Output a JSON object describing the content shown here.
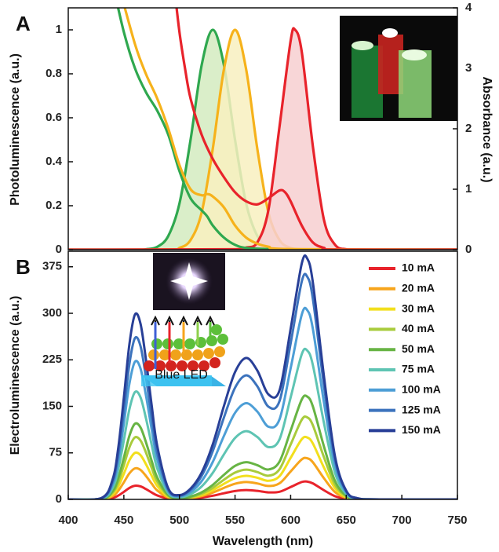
{
  "chart_data": [
    {
      "type": "line",
      "panel_label": "A",
      "ylabel": "Photoluminescence (a.u.)",
      "y2label": "Absorbance (a.u.)",
      "xlim": [
        400,
        750
      ],
      "ylim": [
        0,
        1.1
      ],
      "yticks": [
        0,
        0.2,
        0.4,
        0.6,
        0.8,
        1
      ],
      "y2lim": [
        0,
        4
      ],
      "y2ticks": [
        0,
        1,
        2,
        3,
        4
      ],
      "series": [
        {
          "color": "#2fa84f",
          "fill_color": "#d3ebbf",
          "x": [
            400,
            460,
            470,
            480,
            490,
            500,
            510,
            520,
            530,
            540,
            550,
            560,
            570,
            580,
            590,
            600,
            750
          ],
          "values": [
            0,
            0,
            0.002,
            0.013,
            0.063,
            0.21,
            0.5,
            0.84,
            1,
            0.84,
            0.5,
            0.21,
            0.063,
            0.013,
            0.002,
            0,
            0
          ]
        },
        {
          "color": "#f6b21b",
          "fill_color": "#f8f0bf",
          "x": [
            400,
            490,
            500,
            510,
            520,
            530,
            540,
            550,
            560,
            570,
            580,
            590,
            600,
            610,
            620,
            750
          ],
          "values": [
            0,
            0.001,
            0.008,
            0.044,
            0.17,
            0.46,
            0.82,
            1,
            0.82,
            0.46,
            0.17,
            0.044,
            0.008,
            0.001,
            0,
            0
          ]
        },
        {
          "color": "#e8232b",
          "fill_color": "#f7cfd0",
          "x": [
            400,
            550,
            560,
            570,
            580,
            590,
            600,
            604,
            610,
            620,
            630,
            640,
            650,
            660,
            750
          ],
          "values": [
            0,
            0.002,
            0.01,
            0.033,
            0.18,
            0.56,
            0.95,
            1,
            0.9,
            0.47,
            0.135,
            0.022,
            0.002,
            0,
            0
          ]
        },
        {
          "color": "#2fa84f",
          "axis": "y2",
          "x": [
            440,
            450,
            460,
            470,
            480,
            490,
            500,
            510,
            520,
            525,
            530,
            540,
            550,
            560,
            580,
            600,
            750
          ],
          "values": [
            4.4,
            3.6,
            3.0,
            2.6,
            2.3,
            1.9,
            1.3,
            0.85,
            0.65,
            0.55,
            0.4,
            0.2,
            0.08,
            0.03,
            0.01,
            0,
            0
          ]
        },
        {
          "color": "#f6b21b",
          "axis": "y2",
          "x": [
            445,
            460,
            470,
            480,
            490,
            500,
            510,
            520,
            525,
            530,
            540,
            550,
            560,
            570,
            580,
            600,
            750
          ],
          "values": [
            4.4,
            3.4,
            2.9,
            2.5,
            2.0,
            1.4,
            1.0,
            0.9,
            0.92,
            0.88,
            0.7,
            0.4,
            0.2,
            0.1,
            0.05,
            0.01,
            0
          ]
        },
        {
          "color": "#e8232b",
          "axis": "y2",
          "x": [
            495,
            500,
            505,
            510,
            520,
            530,
            540,
            550,
            560,
            570,
            580,
            590,
            595,
            600,
            610,
            620,
            630,
            640,
            750
          ],
          "values": [
            4.4,
            3.6,
            3.0,
            2.5,
            1.9,
            1.5,
            1.2,
            0.95,
            0.8,
            0.75,
            0.85,
            0.98,
            0.95,
            0.8,
            0.4,
            0.12,
            0.03,
            0,
            0
          ]
        }
      ]
    },
    {
      "type": "line",
      "panel_label": "B",
      "ylabel": "Electroluminescence (a.u.)",
      "xlabel": "Wavelength (nm)",
      "inset_label": "Blue LED",
      "legend": "upper right",
      "xlim": [
        400,
        750
      ],
      "xticks": [
        400,
        450,
        500,
        550,
        600,
        650,
        700,
        750
      ],
      "ylim": [
        0,
        400
      ],
      "yticks": [
        0,
        75,
        150,
        225,
        300,
        375
      ],
      "x": [
        400,
        430,
        440,
        445,
        450,
        455,
        460,
        465,
        470,
        475,
        480,
        490,
        500,
        510,
        520,
        530,
        540,
        550,
        560,
        570,
        580,
        590,
        600,
        610,
        615,
        620,
        630,
        640,
        650,
        660,
        680,
        750
      ],
      "series": [
        {
          "name": "10 mA",
          "color": "#e8232b",
          "values": [
            0,
            0.2,
            2.4,
            6.2,
            12.1,
            18.5,
            22,
            20.9,
            16.5,
            11.2,
            6.4,
            1.3,
            0.5,
            1.1,
            2.9,
            5.9,
            9.9,
            13.5,
            15,
            13.7,
            11.3,
            12.3,
            19.9,
            28.0,
            28.7,
            25.8,
            14.7,
            5.1,
            1.0,
            0.1,
            0,
            0
          ]
        },
        {
          "name": "20 mA",
          "color": "#f7a51c",
          "values": [
            0,
            0.4,
            5.5,
            14,
            27.5,
            42,
            50,
            47.5,
            37.5,
            25.5,
            14.5,
            2.9,
            0.9,
            2.1,
            5.3,
            10.9,
            18.5,
            25.2,
            28,
            25.7,
            21.7,
            25.9,
            45,
            64.5,
            66.2,
            59.8,
            34,
            11.7,
            2.4,
            0.3,
            0,
            0
          ]
        },
        {
          "name": "30 mA",
          "color": "#f2df1d",
          "values": [
            0,
            0.6,
            8.3,
            21,
            41.3,
            63,
            75,
            71.3,
            56.3,
            38.3,
            21.8,
            4.3,
            1.3,
            2.9,
            7.2,
            14.8,
            25.1,
            34.2,
            38,
            34.9,
            30,
            37.4,
            67,
            97,
            99.7,
            90.1,
            51.2,
            17.7,
            3.6,
            0.5,
            0,
            0
          ]
        },
        {
          "name": "40 mA",
          "color": "#a8cb3c",
          "values": [
            0,
            0.8,
            11,
            28,
            55,
            84,
            100,
            95,
            75,
            51,
            29,
            5.7,
            1.7,
            3.6,
            9.1,
            18.7,
            31.7,
            43.2,
            48,
            44.1,
            38.2,
            48.6,
            88.4,
            128.4,
            132.1,
            119.5,
            67.9,
            23.4,
            4.8,
            0.7,
            0,
            0
          ]
        },
        {
          "name": "50 mA",
          "color": "#67b444",
          "values": [
            0,
            1,
            13.4,
            34.2,
            67.1,
            102.5,
            122,
            115.9,
            91.5,
            62.2,
            35.4,
            6.9,
            2.0,
            4.6,
            11.4,
            23.4,
            39.6,
            54,
            60,
            55.1,
            48.2,
            60.9,
            110.8,
            161,
            165.6,
            149.8,
            85.1,
            29.4,
            6,
            0.8,
            0,
            0
          ]
        },
        {
          "name": "75 mA",
          "color": "#5ec4b3",
          "values": [
            0,
            1.4,
            19,
            48.4,
            95.2,
            145.3,
            173,
            164.4,
            129.8,
            88.2,
            50.2,
            10,
            3.5,
            8.4,
            20.9,
            42.9,
            72.6,
            99,
            110,
            100.6,
            84.4,
            96.9,
            164.3,
            234,
            239.8,
            216.5,
            122.9,
            42.4,
            8.7,
            1.2,
            0,
            0
          ]
        },
        {
          "name": "100 mA",
          "color": "#4d9ed6",
          "values": [
            0,
            1.8,
            24.4,
            62.2,
            122.1,
            186.5,
            222,
            210.9,
            166.5,
            113.2,
            64.4,
            12.9,
            4.8,
            11.8,
            29.5,
            60.5,
            102.3,
            139.5,
            155,
            141.6,
            117.2,
            129,
            211.3,
            297.9,
            304.8,
            274.9,
            155.9,
            53.8,
            11,
            1.5,
            0,
            0
          ]
        },
        {
          "name": "125 mA",
          "color": "#3c73bd",
          "values": [
            0,
            2.1,
            28.6,
            72.8,
            143,
            218.4,
            260,
            247,
            195,
            132.6,
            75.4,
            15.2,
            6.1,
            15.2,
            38,
            78,
            132,
            180,
            200,
            182.5,
            149.5,
            158.5,
            251.5,
            351.2,
            358.8,
            323.3,
            183.2,
            63.2,
            13,
            1.8,
            0,
            0
          ]
        },
        {
          "name": "150 mA",
          "color": "#283f97",
          "values": [
            0,
            2.4,
            32.8,
            83.4,
            163.9,
            250.3,
            298,
            283.1,
            223.5,
            152,
            86.4,
            17.5,
            7,
            17.3,
            43.3,
            88.9,
            150.5,
            205.2,
            228,
            207.8,
            169.4,
            175.8,
            274.9,
            380.2,
            388,
            349.5,
            197.9,
            68.3,
            14,
            1.9,
            0,
            0
          ]
        }
      ]
    }
  ]
}
